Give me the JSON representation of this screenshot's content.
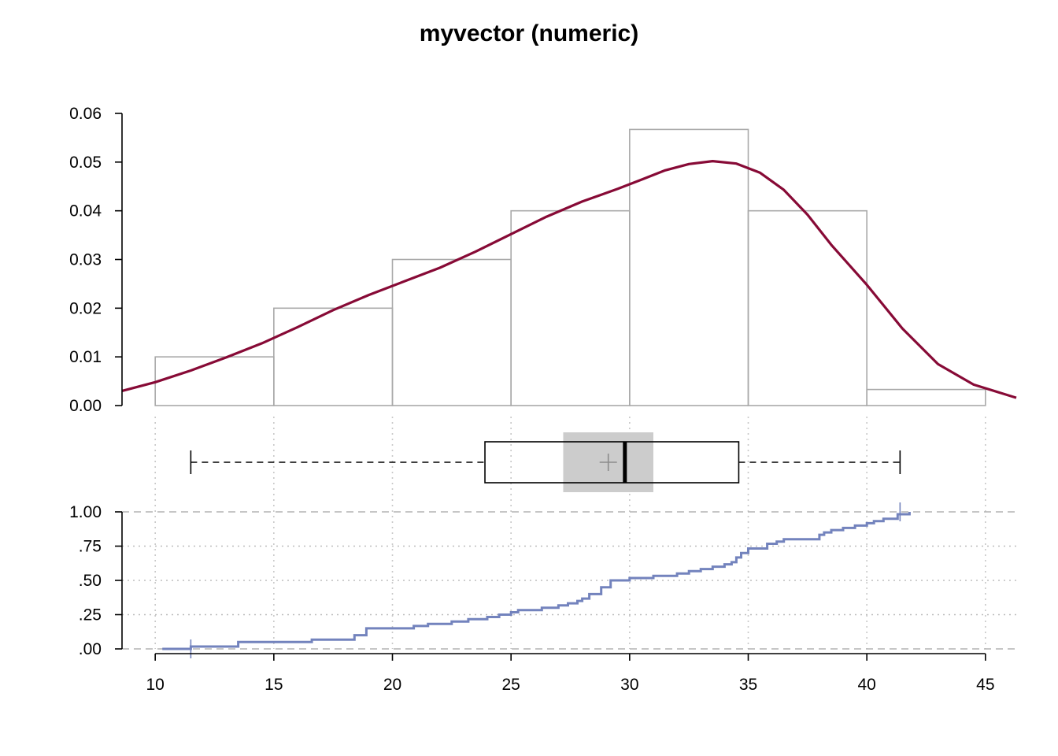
{
  "chart_data": {
    "title": "myvector (numeric)",
    "panels": [
      {
        "type": "histogram",
        "bins": [
          {
            "x0": 10,
            "x1": 15,
            "density": 0.01
          },
          {
            "x0": 15,
            "x1": 20,
            "density": 0.02
          },
          {
            "x0": 20,
            "x1": 25,
            "density": 0.03
          },
          {
            "x0": 25,
            "x1": 30,
            "density": 0.04
          },
          {
            "x0": 30,
            "x1": 35,
            "density": 0.0567
          },
          {
            "x0": 35,
            "x1": 40,
            "density": 0.04
          },
          {
            "x0": 40,
            "x1": 45,
            "density": 0.0033
          }
        ],
        "density_curve": {
          "x": [
            8.6,
            10,
            11.5,
            13,
            14.5,
            16,
            17.5,
            19,
            20.5,
            22,
            23.5,
            25,
            26.5,
            28,
            29.5,
            30.5,
            31.5,
            32.5,
            33.5,
            34.5,
            35.5,
            36.5,
            37.5,
            38.5,
            40,
            41.5,
            43,
            44.5,
            46.3
          ],
          "y": [
            0.003,
            0.0048,
            0.0072,
            0.0099,
            0.0128,
            0.0161,
            0.0196,
            0.0227,
            0.0255,
            0.0283,
            0.0316,
            0.0352,
            0.0388,
            0.0419,
            0.0445,
            0.0464,
            0.0483,
            0.0496,
            0.0502,
            0.0497,
            0.0478,
            0.0443,
            0.0392,
            0.033,
            0.0248,
            0.0158,
            0.0085,
            0.0043,
            0.0016
          ],
          "color": "#870a36"
        },
        "ylim": [
          0,
          0.06
        ],
        "yticks": [
          "0.00",
          "0.01",
          "0.02",
          "0.03",
          "0.04",
          "0.05",
          "0.06"
        ],
        "bar_color": "#a9a9a9"
      },
      {
        "type": "boxplot",
        "whisker_low": 11.5,
        "q1": 23.9,
        "median": 29.8,
        "q3": 34.6,
        "whisker_high": 41.4,
        "mean": 29.1,
        "median_ci": [
          27.2,
          31.0
        ],
        "ci_color": "#cccccc"
      },
      {
        "type": "ecdf",
        "x": [
          11.5,
          13.5,
          16.6,
          18.4,
          18.9,
          20.9,
          21.5,
          22.5,
          23.2,
          24.0,
          24.5,
          25.0,
          25.3,
          26.3,
          27.0,
          27.4,
          27.8,
          28.0,
          28.3,
          28.8,
          29.2,
          30.0,
          31.0,
          32.0,
          32.5,
          33.0,
          33.5,
          34.0,
          34.3,
          34.5,
          34.7,
          35.0,
          35.8,
          36.2,
          36.5,
          38.0,
          38.2,
          38.5,
          39.0,
          39.5,
          40.0,
          40.3,
          40.7,
          41.3,
          41.8
        ],
        "y": [
          0.017,
          0.05,
          0.067,
          0.1,
          0.15,
          0.167,
          0.183,
          0.2,
          0.217,
          0.233,
          0.25,
          0.267,
          0.283,
          0.3,
          0.317,
          0.333,
          0.35,
          0.367,
          0.4,
          0.45,
          0.5,
          0.517,
          0.533,
          0.55,
          0.567,
          0.583,
          0.6,
          0.617,
          0.633,
          0.667,
          0.7,
          0.733,
          0.767,
          0.783,
          0.8,
          0.833,
          0.85,
          0.867,
          0.883,
          0.9,
          0.917,
          0.933,
          0.95,
          0.983,
          1.0
        ],
        "ylim": [
          0,
          1
        ],
        "yticks": [
          ".00",
          ".25",
          ".50",
          ".75",
          "1.00"
        ],
        "color": "#7383bd"
      }
    ],
    "xlim": [
      8.6,
      46.3
    ],
    "xticks": [
      "10",
      "15",
      "20",
      "25",
      "30",
      "35",
      "40",
      "45"
    ],
    "grid": true
  }
}
